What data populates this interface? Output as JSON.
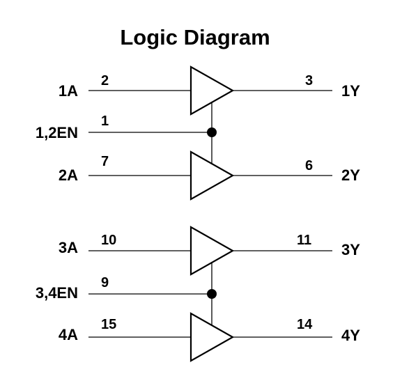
{
  "title": "Logic Diagram",
  "buffers": [
    {
      "input": "1A",
      "input_pin": "2",
      "output": "1Y",
      "output_pin": "3"
    },
    {
      "input": "2A",
      "input_pin": "7",
      "output": "2Y",
      "output_pin": "6"
    },
    {
      "input": "3A",
      "input_pin": "10",
      "output": "3Y",
      "output_pin": "11"
    },
    {
      "input": "4A",
      "input_pin": "15",
      "output": "4Y",
      "output_pin": "14"
    }
  ],
  "enables": [
    {
      "label": "1,2EN",
      "pin": "1"
    },
    {
      "label": "3,4EN",
      "pin": "9"
    }
  ]
}
